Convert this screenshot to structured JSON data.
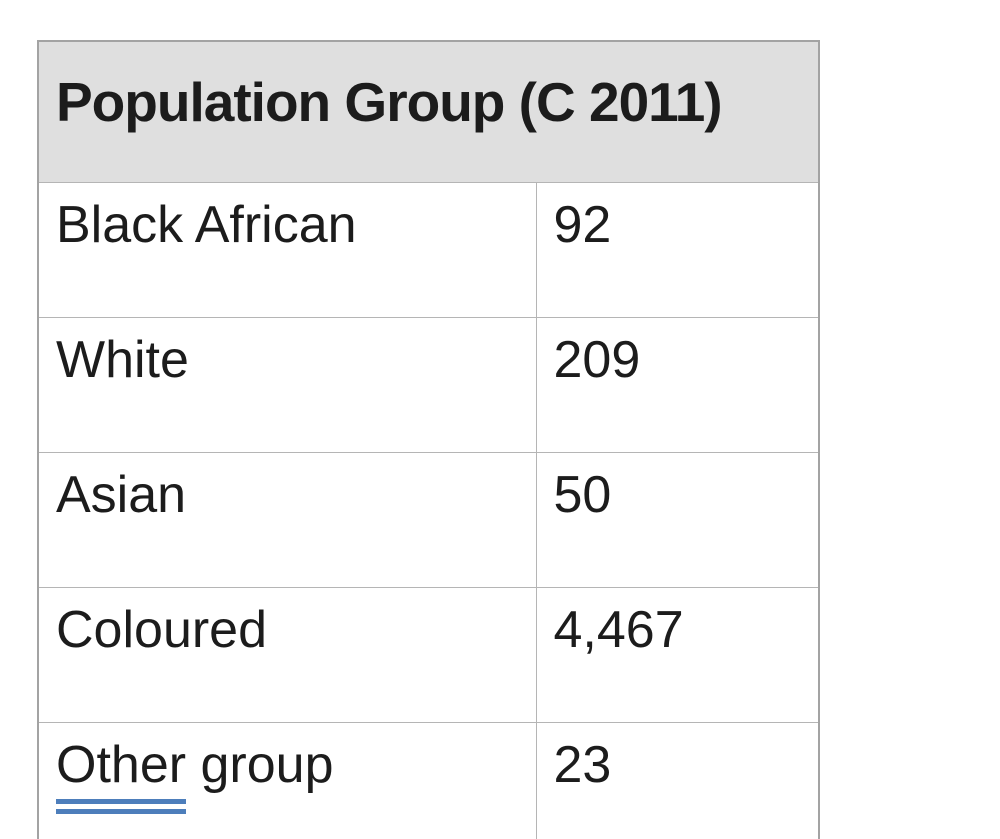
{
  "table": {
    "header": "Population Group (C 2011)",
    "rows": [
      {
        "label": "Black African",
        "value": "92"
      },
      {
        "label": "White",
        "value": "209"
      },
      {
        "label": "Asian",
        "value": "50"
      },
      {
        "label": "Coloured",
        "value": "4,467"
      },
      {
        "label": "Other group",
        "label_underlined": "Other",
        "label_rest": " group",
        "value": "23"
      }
    ]
  },
  "colors": {
    "header_background": "#dfdfdf",
    "border": "#a3a3a3",
    "inner_border": "#b5b5b5",
    "text": "#1c1c1c",
    "grammar_underline_blue": "#4d7ebb",
    "page_background": "#ffffff"
  },
  "chart_data": {
    "type": "table",
    "title": "Population Group (C 2011)",
    "categories": [
      "Black African",
      "White",
      "Asian",
      "Coloured",
      "Other group"
    ],
    "values": [
      92,
      209,
      50,
      4467,
      23
    ]
  }
}
